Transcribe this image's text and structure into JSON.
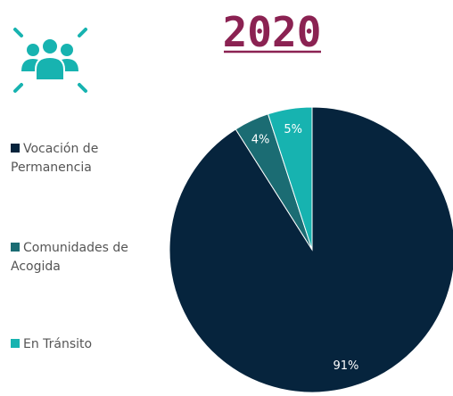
{
  "chart_data": {
    "type": "pie",
    "title": "2020",
    "categories": [
      "Vocación de Permanencia",
      "Comunidades de Acogida",
      "En Tránsito"
    ],
    "values": [
      91,
      4,
      5
    ],
    "value_labels": [
      "91%",
      "4%",
      "5%"
    ],
    "colors": [
      "#06243d",
      "#1b6c73",
      "#17b3b0"
    ]
  }
}
